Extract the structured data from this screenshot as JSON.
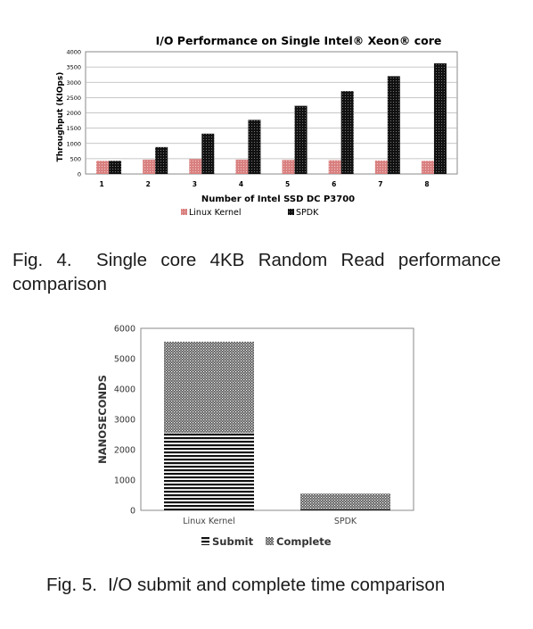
{
  "chart_data": [
    {
      "type": "bar",
      "title": "I/O Performance on Single Intel® Xeon® core",
      "xlabel": "Number of Intel SSD DC P3700",
      "ylabel": "Throughput (KIOps)",
      "ylim": [
        0,
        4000
      ],
      "yticks": [
        "0",
        "500",
        "1000",
        "1500",
        "2000",
        "2500",
        "3000",
        "3500",
        "4000"
      ],
      "categories": [
        "1",
        "2",
        "3",
        "4",
        "5",
        "6",
        "7",
        "8"
      ],
      "series": [
        {
          "name": "Linux Kernel",
          "color": "#d98080",
          "values": [
            430,
            470,
            490,
            470,
            460,
            450,
            440,
            430
          ]
        },
        {
          "name": "SPDK",
          "color": "#111111",
          "values": [
            430,
            880,
            1320,
            1770,
            2230,
            2710,
            3200,
            3620
          ]
        }
      ],
      "grid": true,
      "legend": "bottom"
    },
    {
      "type": "bar",
      "stacked": true,
      "ylabel": "NANOSECONDS",
      "ylim": [
        0,
        6000
      ],
      "yticks": [
        "0",
        "1000",
        "2000",
        "3000",
        "4000",
        "5000",
        "6000"
      ],
      "categories": [
        "Linux Kernel",
        "SPDK"
      ],
      "series": [
        {
          "name": "Submit",
          "values": [
            2550,
            30
          ]
        },
        {
          "name": "Complete",
          "values": [
            3010,
            520
          ]
        }
      ],
      "grid": false,
      "legend": "bottom"
    }
  ],
  "captions": {
    "fig4_number": "Fig. 4.",
    "fig4_text": "Single core 4KB Random Read performance comparison",
    "fig5_number": "Fig. 5.",
    "fig5_text": "I/O submit and complete time comparison"
  }
}
